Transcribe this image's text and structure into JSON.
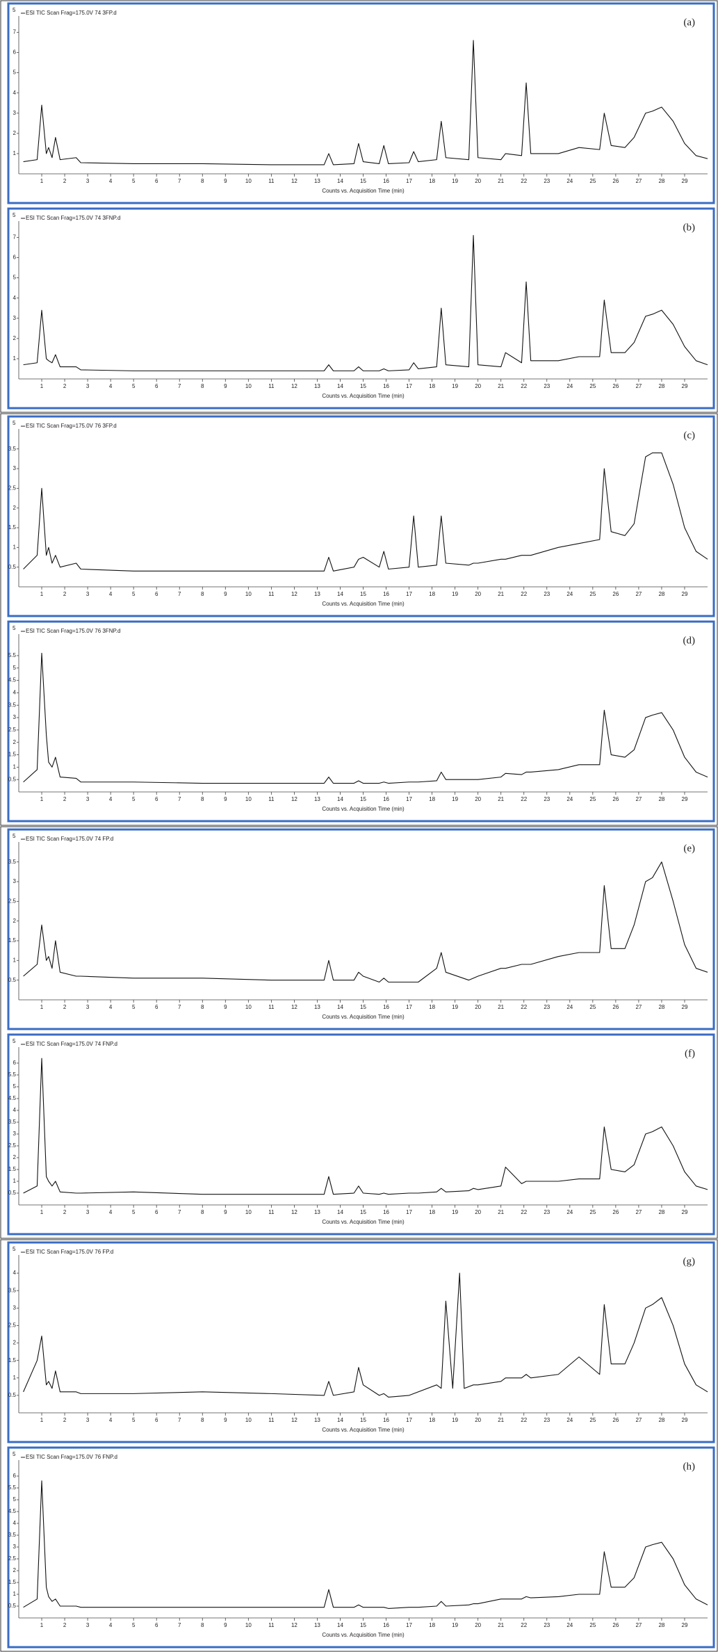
{
  "chart_data": [
    {
      "type": "line",
      "title": "ESI TIC Scan Frag=175.0V 74 3FP.d",
      "panel_label": "(a)",
      "y_exponent": "5",
      "xlabel": "Counts vs. Acquisition Time (min)",
      "color": "#111111",
      "xlim": [
        0,
        30
      ],
      "xticks": [
        1,
        2,
        3,
        4,
        5,
        6,
        7,
        8,
        9,
        10,
        11,
        12,
        13,
        14,
        15,
        16,
        17,
        18,
        19,
        20,
        21,
        22,
        23,
        24,
        25,
        26,
        27,
        28,
        29
      ],
      "ylim": [
        0,
        7.6
      ],
      "yticks": [
        1,
        2,
        3,
        4,
        5,
        6,
        7
      ],
      "x": [
        0.2,
        0.8,
        1.0,
        1.2,
        1.3,
        1.45,
        1.6,
        1.8,
        2.5,
        2.7,
        5,
        8,
        11,
        13.3,
        13.5,
        13.7,
        14.6,
        14.8,
        15.0,
        15.7,
        15.9,
        16.1,
        17.0,
        17.2,
        17.4,
        18.2,
        18.4,
        18.6,
        19.6,
        19.8,
        20.0,
        21.0,
        21.2,
        21.9,
        22.1,
        22.3,
        23.5,
        24.4,
        25.3,
        25.5,
        25.8,
        26.4,
        26.8,
        27.3,
        27.6,
        28.0,
        28.5,
        29.0,
        29.5,
        30
      ],
      "values": [
        0.6,
        0.7,
        3.4,
        1.0,
        1.3,
        0.8,
        1.8,
        0.7,
        0.8,
        0.55,
        0.5,
        0.5,
        0.45,
        0.45,
        1.0,
        0.45,
        0.5,
        1.5,
        0.6,
        0.5,
        1.4,
        0.5,
        0.55,
        1.1,
        0.6,
        0.7,
        2.6,
        0.8,
        0.7,
        6.6,
        0.8,
        0.7,
        1.0,
        0.9,
        4.5,
        1.0,
        1.0,
        1.3,
        1.2,
        3.0,
        1.4,
        1.3,
        1.8,
        3.0,
        3.1,
        3.3,
        2.6,
        1.5,
        0.9,
        0.75
      ]
    },
    {
      "type": "line",
      "title": "ESI TIC Scan Frag=175.0V 74 3FNP.d",
      "panel_label": "(b)",
      "y_exponent": "5",
      "xlabel": "Counts vs. Acquisition Time (min)",
      "color": "#111111",
      "xlim": [
        0,
        30
      ],
      "xticks": [
        1,
        2,
        3,
        4,
        5,
        6,
        7,
        8,
        9,
        10,
        11,
        12,
        13,
        14,
        15,
        16,
        17,
        18,
        19,
        20,
        21,
        22,
        23,
        24,
        25,
        26,
        27,
        28,
        29
      ],
      "ylim": [
        0,
        7.6
      ],
      "yticks": [
        1,
        2,
        3,
        4,
        5,
        6,
        7
      ],
      "x": [
        0.2,
        0.8,
        1.0,
        1.2,
        1.3,
        1.45,
        1.6,
        1.8,
        2.5,
        2.7,
        5,
        8,
        11,
        13.3,
        13.5,
        13.7,
        14.6,
        14.8,
        15.0,
        15.7,
        15.9,
        16.1,
        17.0,
        17.2,
        17.4,
        18.2,
        18.4,
        18.6,
        19.6,
        19.8,
        20.0,
        21.0,
        21.2,
        21.9,
        22.1,
        22.3,
        23.5,
        24.4,
        25.3,
        25.5,
        25.8,
        26.4,
        26.8,
        27.3,
        27.6,
        28.0,
        28.5,
        29.0,
        29.5,
        30
      ],
      "values": [
        0.7,
        0.8,
        3.4,
        1.0,
        0.9,
        0.8,
        1.2,
        0.6,
        0.6,
        0.45,
        0.4,
        0.4,
        0.4,
        0.4,
        0.7,
        0.4,
        0.4,
        0.6,
        0.4,
        0.4,
        0.5,
        0.4,
        0.45,
        0.8,
        0.5,
        0.6,
        3.5,
        0.7,
        0.6,
        7.1,
        0.7,
        0.6,
        1.3,
        0.8,
        4.8,
        0.9,
        0.9,
        1.1,
        1.1,
        3.9,
        1.3,
        1.3,
        1.8,
        3.1,
        3.2,
        3.4,
        2.7,
        1.6,
        0.9,
        0.7
      ]
    },
    {
      "type": "line",
      "title": "ESI TIC Scan Frag=175.0V 76 3FP.d",
      "panel_label": "(c)",
      "y_exponent": "5",
      "xlabel": "Counts vs. Acquisition Time (min)",
      "color": "#111111",
      "xlim": [
        0,
        30
      ],
      "xticks": [
        1,
        2,
        3,
        4,
        5,
        6,
        7,
        8,
        9,
        10,
        11,
        12,
        13,
        14,
        15,
        16,
        17,
        18,
        19,
        20,
        21,
        22,
        23,
        24,
        25,
        26,
        27,
        28,
        29
      ],
      "ylim": [
        0,
        3.9
      ],
      "yticks": [
        0.5,
        1,
        1.5,
        2,
        2.5,
        3,
        3.5
      ],
      "x": [
        0.2,
        0.8,
        1.0,
        1.2,
        1.3,
        1.45,
        1.6,
        1.8,
        2.5,
        2.7,
        5,
        8,
        11,
        13.3,
        13.5,
        13.7,
        14.6,
        14.8,
        15.0,
        15.7,
        15.9,
        16.1,
        17.0,
        17.2,
        17.4,
        18.2,
        18.4,
        18.6,
        19.6,
        19.8,
        20.0,
        21.0,
        21.2,
        21.9,
        22.1,
        22.3,
        23.5,
        24.4,
        25.3,
        25.5,
        25.8,
        26.4,
        26.8,
        27.3,
        27.6,
        28.0,
        28.5,
        29.0,
        29.5,
        30
      ],
      "values": [
        0.45,
        0.8,
        2.5,
        0.8,
        1.0,
        0.6,
        0.8,
        0.5,
        0.6,
        0.45,
        0.4,
        0.4,
        0.4,
        0.4,
        0.75,
        0.4,
        0.5,
        0.7,
        0.75,
        0.5,
        0.9,
        0.45,
        0.5,
        1.8,
        0.5,
        0.55,
        1.8,
        0.6,
        0.55,
        0.6,
        0.6,
        0.7,
        0.7,
        0.8,
        0.8,
        0.8,
        1.0,
        1.1,
        1.2,
        3.0,
        1.4,
        1.3,
        1.6,
        3.3,
        3.4,
        3.4,
        2.6,
        1.5,
        0.9,
        0.7
      ]
    },
    {
      "type": "line",
      "title": "ESI TIC Scan Frag=175.0V 76 3FNP.d",
      "panel_label": "(d)",
      "y_exponent": "5",
      "xlabel": "Counts vs. Acquisition Time (min)",
      "color": "#111111",
      "xlim": [
        0,
        30
      ],
      "xticks": [
        1,
        2,
        3,
        4,
        5,
        6,
        7,
        8,
        9,
        10,
        11,
        12,
        13,
        14,
        15,
        16,
        17,
        18,
        19,
        20,
        21,
        22,
        23,
        24,
        25,
        26,
        27,
        28,
        29
      ],
      "ylim": [
        0,
        6.2
      ],
      "yticks": [
        0.5,
        1,
        1.5,
        2,
        2.5,
        3,
        3.5,
        4,
        4.5,
        5,
        5.5
      ],
      "x": [
        0.2,
        0.8,
        1.0,
        1.2,
        1.3,
        1.45,
        1.6,
        1.8,
        2.5,
        2.7,
        5,
        8,
        11,
        13.3,
        13.5,
        13.7,
        14.6,
        14.8,
        15.0,
        15.7,
        15.9,
        16.1,
        17.0,
        17.2,
        17.4,
        18.2,
        18.4,
        18.6,
        19.6,
        19.8,
        20.0,
        21.0,
        21.2,
        21.9,
        22.1,
        22.3,
        23.5,
        24.4,
        25.3,
        25.5,
        25.8,
        26.4,
        26.8,
        27.3,
        27.6,
        28.0,
        28.5,
        29.0,
        29.5,
        30
      ],
      "values": [
        0.4,
        0.9,
        5.6,
        2.3,
        1.2,
        1.0,
        1.4,
        0.6,
        0.55,
        0.4,
        0.4,
        0.35,
        0.35,
        0.35,
        0.6,
        0.35,
        0.35,
        0.45,
        0.35,
        0.35,
        0.4,
        0.35,
        0.4,
        0.4,
        0.4,
        0.45,
        0.8,
        0.5,
        0.5,
        0.5,
        0.5,
        0.6,
        0.75,
        0.7,
        0.8,
        0.8,
        0.9,
        1.1,
        1.1,
        3.3,
        1.5,
        1.4,
        1.7,
        3.0,
        3.1,
        3.2,
        2.5,
        1.4,
        0.8,
        0.6
      ]
    },
    {
      "type": "line",
      "title": "ESI TIC Scan Frag=175.0V 74 FP.d",
      "panel_label": "(e)",
      "y_exponent": "5",
      "xlabel": "Counts vs. Acquisition Time (min)",
      "color": "#111111",
      "xlim": [
        0,
        30
      ],
      "xticks": [
        1,
        2,
        3,
        4,
        5,
        6,
        7,
        8,
        9,
        10,
        11,
        12,
        13,
        14,
        15,
        16,
        17,
        18,
        19,
        20,
        21,
        22,
        23,
        24,
        25,
        26,
        27,
        28,
        29
      ],
      "ylim": [
        0,
        3.9
      ],
      "yticks": [
        0.5,
        1,
        1.5,
        2,
        2.5,
        3,
        3.5
      ],
      "x": [
        0.2,
        0.8,
        1.0,
        1.2,
        1.3,
        1.45,
        1.6,
        1.8,
        2.5,
        2.7,
        5,
        8,
        11,
        13.3,
        13.5,
        13.7,
        14.6,
        14.8,
        15.0,
        15.7,
        15.9,
        16.1,
        17.0,
        17.2,
        17.4,
        18.2,
        18.4,
        18.6,
        19.6,
        19.8,
        20.0,
        21.0,
        21.2,
        21.9,
        22.1,
        22.3,
        23.5,
        24.4,
        25.3,
        25.5,
        25.8,
        26.4,
        26.8,
        27.3,
        27.6,
        28.0,
        28.5,
        29.0,
        29.5,
        30
      ],
      "values": [
        0.6,
        0.9,
        1.9,
        1.0,
        1.1,
        0.8,
        1.5,
        0.7,
        0.6,
        0.6,
        0.55,
        0.55,
        0.5,
        0.5,
        1.0,
        0.5,
        0.5,
        0.7,
        0.6,
        0.45,
        0.55,
        0.45,
        0.45,
        0.45,
        0.45,
        0.8,
        1.2,
        0.7,
        0.5,
        0.55,
        0.6,
        0.8,
        0.8,
        0.9,
        0.9,
        0.9,
        1.1,
        1.2,
        1.2,
        2.9,
        1.3,
        1.3,
        1.9,
        3.0,
        3.1,
        3.5,
        2.5,
        1.4,
        0.8,
        0.7
      ]
    },
    {
      "type": "line",
      "title": "ESI TIC Scan Frag=175.0V 74 FNP.d",
      "panel_label": "(f)",
      "y_exponent": "5",
      "xlabel": "Counts vs. Acquisition Time (min)",
      "color": "#111111",
      "xlim": [
        0,
        30
      ],
      "xticks": [
        1,
        2,
        3,
        4,
        5,
        6,
        7,
        8,
        9,
        10,
        11,
        12,
        13,
        14,
        15,
        16,
        17,
        18,
        19,
        20,
        21,
        22,
        23,
        24,
        25,
        26,
        27,
        28,
        29
      ],
      "ylim": [
        0,
        6.5
      ],
      "yticks": [
        0.5,
        1,
        1.5,
        2,
        2.5,
        3,
        3.5,
        4,
        4.5,
        5,
        5.5,
        6
      ],
      "x": [
        0.2,
        0.8,
        1.0,
        1.2,
        1.3,
        1.45,
        1.6,
        1.8,
        2.5,
        2.7,
        5,
        8,
        11,
        13.3,
        13.5,
        13.7,
        14.6,
        14.8,
        15.0,
        15.7,
        15.9,
        16.1,
        17.0,
        17.2,
        17.4,
        18.2,
        18.4,
        18.6,
        19.6,
        19.8,
        20.0,
        21.0,
        21.2,
        21.9,
        22.1,
        22.3,
        23.5,
        24.4,
        25.3,
        25.5,
        25.8,
        26.4,
        26.8,
        27.3,
        27.6,
        28.0,
        28.5,
        29.0,
        29.5,
        30
      ],
      "values": [
        0.5,
        0.8,
        6.2,
        1.2,
        1.0,
        0.8,
        1.0,
        0.55,
        0.5,
        0.5,
        0.55,
        0.45,
        0.45,
        0.45,
        1.2,
        0.45,
        0.5,
        0.8,
        0.5,
        0.45,
        0.5,
        0.45,
        0.5,
        0.5,
        0.5,
        0.55,
        0.7,
        0.55,
        0.6,
        0.7,
        0.65,
        0.8,
        1.6,
        0.9,
        1.0,
        1.0,
        1.0,
        1.1,
        1.1,
        3.3,
        1.5,
        1.4,
        1.7,
        3.0,
        3.1,
        3.3,
        2.5,
        1.4,
        0.8,
        0.65
      ]
    },
    {
      "type": "line",
      "title": "ESI TIC Scan Frag=175.0V 76 FP.d",
      "panel_label": "(g)",
      "y_exponent": "5",
      "xlabel": "Counts vs. Acquisition Time (min)",
      "color": "#111111",
      "xlim": [
        0,
        30
      ],
      "xticks": [
        1,
        2,
        3,
        4,
        5,
        6,
        7,
        8,
        9,
        10,
        11,
        12,
        13,
        14,
        15,
        16,
        17,
        18,
        19,
        20,
        21,
        22,
        23,
        24,
        25,
        26,
        27,
        28,
        29
      ],
      "ylim": [
        0,
        4.4
      ],
      "yticks": [
        0.5,
        1,
        1.5,
        2,
        2.5,
        3,
        3.5,
        4
      ],
      "x": [
        0.2,
        0.8,
        1.0,
        1.2,
        1.3,
        1.45,
        1.6,
        1.8,
        2.5,
        2.7,
        5,
        8,
        11,
        13.3,
        13.5,
        13.7,
        14.6,
        14.8,
        15.0,
        15.7,
        15.9,
        16.1,
        17.0,
        18.2,
        18.4,
        18.6,
        18.9,
        19.2,
        19.4,
        19.8,
        20.0,
        21.0,
        21.2,
        21.9,
        22.1,
        22.3,
        23.5,
        24.4,
        25.3,
        25.5,
        25.8,
        26.4,
        26.8,
        27.3,
        27.6,
        28.0,
        28.5,
        29.0,
        29.5,
        30
      ],
      "values": [
        0.6,
        1.5,
        2.2,
        0.8,
        0.9,
        0.7,
        1.2,
        0.6,
        0.6,
        0.55,
        0.55,
        0.6,
        0.55,
        0.5,
        0.9,
        0.5,
        0.6,
        1.3,
        0.8,
        0.5,
        0.55,
        0.45,
        0.5,
        0.8,
        0.7,
        3.2,
        0.7,
        4.0,
        0.7,
        0.8,
        0.8,
        0.9,
        1.0,
        1.0,
        1.1,
        1.0,
        1.1,
        1.6,
        1.1,
        3.1,
        1.4,
        1.4,
        2.0,
        3.0,
        3.1,
        3.3,
        2.5,
        1.4,
        0.8,
        0.6
      ]
    },
    {
      "type": "line",
      "title": "ESI TIC Scan Frag=175.0V 76 FNP.d",
      "panel_label": "(h)",
      "y_exponent": "5",
      "xlabel": "Counts vs. Acquisition Time (min)",
      "color": "#111111",
      "xlim": [
        0,
        30
      ],
      "xticks": [
        1,
        2,
        3,
        4,
        5,
        6,
        7,
        8,
        9,
        10,
        11,
        12,
        13,
        14,
        15,
        16,
        17,
        18,
        19,
        20,
        21,
        22,
        23,
        24,
        25,
        26,
        27,
        28,
        29
      ],
      "ylim": [
        0,
        6.5
      ],
      "yticks": [
        0.5,
        1,
        1.5,
        2,
        2.5,
        3,
        3.5,
        4,
        4.5,
        5,
        5.5,
        6
      ],
      "x": [
        0.2,
        0.8,
        1.0,
        1.2,
        1.3,
        1.45,
        1.6,
        1.8,
        2.5,
        2.7,
        5,
        8,
        11,
        13.3,
        13.5,
        13.7,
        14.6,
        14.8,
        15.0,
        15.7,
        15.9,
        16.1,
        17.0,
        17.2,
        17.4,
        18.2,
        18.4,
        18.6,
        19.6,
        19.8,
        20.0,
        21.0,
        21.2,
        21.9,
        22.1,
        22.3,
        23.5,
        24.4,
        25.3,
        25.5,
        25.8,
        26.4,
        26.8,
        27.3,
        27.6,
        28.0,
        28.5,
        29.0,
        29.5,
        30
      ],
      "values": [
        0.45,
        0.8,
        5.8,
        1.3,
        0.9,
        0.7,
        0.8,
        0.5,
        0.5,
        0.45,
        0.45,
        0.45,
        0.45,
        0.45,
        1.2,
        0.45,
        0.45,
        0.55,
        0.45,
        0.45,
        0.45,
        0.4,
        0.45,
        0.45,
        0.45,
        0.5,
        0.7,
        0.5,
        0.55,
        0.6,
        0.6,
        0.8,
        0.8,
        0.8,
        0.9,
        0.85,
        0.9,
        1.0,
        1.0,
        2.8,
        1.3,
        1.3,
        1.7,
        3.0,
        3.1,
        3.2,
        2.5,
        1.4,
        0.8,
        0.55
      ]
    }
  ]
}
